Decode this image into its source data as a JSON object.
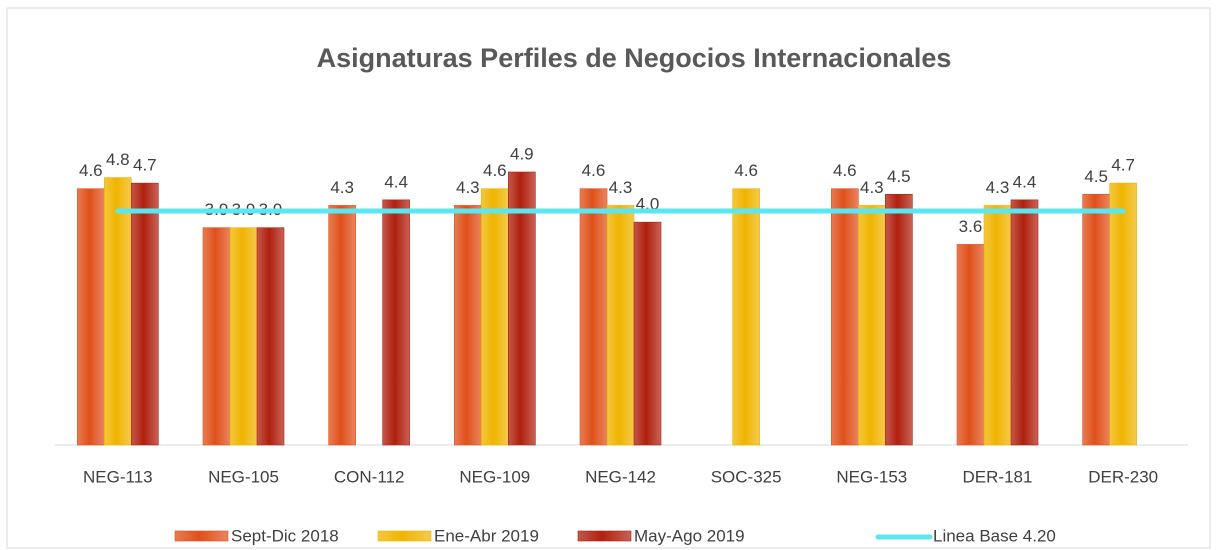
{
  "chart_data": {
    "type": "bar",
    "title": "Asignaturas Perfiles de Negocios Internacionales",
    "categories": [
      "NEG-113",
      "NEG-105",
      "CON-112",
      "NEG-109",
      "NEG-142",
      "SOC-325",
      "NEG-153",
      "DER-181",
      "DER-230"
    ],
    "series": [
      {
        "name": "Sept-Dic  2018",
        "color": "#e0501a",
        "values": [
          4.6,
          3.9,
          4.3,
          4.3,
          4.6,
          null,
          4.6,
          3.6,
          4.5
        ],
        "value_labels": [
          "4.6",
          "3.9",
          "4.3",
          "4.3",
          "4.6",
          null,
          "4.6",
          "3.6",
          "4.5"
        ]
      },
      {
        "name": "Ene-Abr 2019",
        "color": "#f0b400",
        "values": [
          4.8,
          3.9,
          null,
          4.6,
          4.3,
          4.6,
          4.3,
          4.3,
          4.7
        ],
        "value_labels": [
          "4.8",
          "3.9",
          null,
          "4.6",
          "4.3",
          "4.6",
          "4.3",
          "4.3",
          "4.7"
        ]
      },
      {
        "name": "May-Ago 2019",
        "color": "#b0200e",
        "values": [
          4.7,
          3.9,
          4.4,
          4.9,
          4.0,
          null,
          4.5,
          4.4,
          null
        ],
        "value_labels": [
          "4.7",
          "3.9",
          "4.4",
          "4.9",
          "4.0",
          null,
          "4.5",
          "4.4",
          null
        ]
      }
    ],
    "baseline": {
      "name": "Linea Base 4.20",
      "value": 4.2,
      "color": "#5ce6f0"
    },
    "ylim": [
      0,
      7
    ]
  }
}
